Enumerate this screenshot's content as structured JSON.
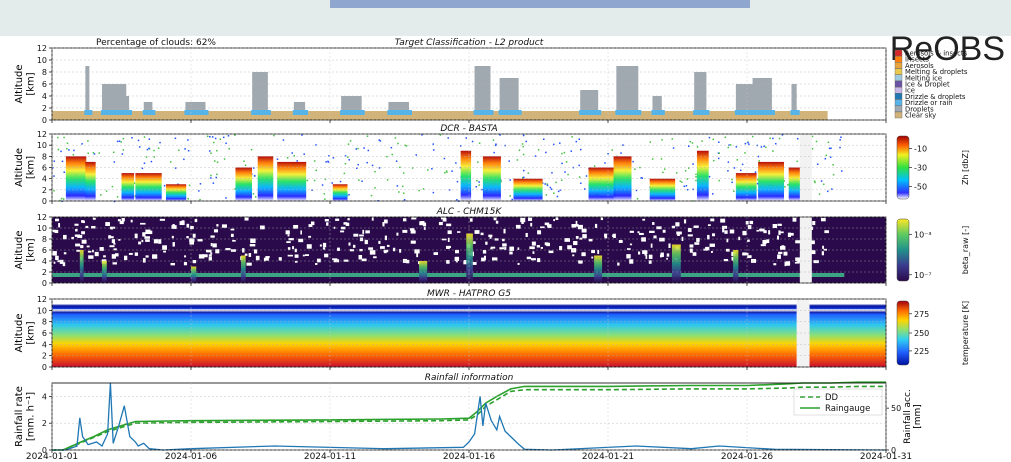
{
  "brand": "ReOBS",
  "x_ticks": [
    "2024-01-01",
    "2024-01-06",
    "2024-01-11",
    "2024-01-16",
    "2024-01-21",
    "2024-01-26",
    "2024-01-31"
  ],
  "x_range_days": [
    0,
    30
  ],
  "colors": {
    "target": [
      "#d62728",
      "#ff7f0e",
      "#e8a33a",
      "#e9c94e",
      "#9ecae1",
      "#6a51a3",
      "#c7b7e6",
      "#1f78b4",
      "#56b4e9",
      "#a1a9b0",
      "#d2b47a",
      "#ffffff"
    ]
  },
  "chart_data": [
    {
      "type": "heatmap",
      "title": "Target Classification - L2 product",
      "annotation": "Percentage of clouds: 62%",
      "ylabel": "Altitude\n[km]",
      "ylim": [
        0,
        12
      ],
      "yticks": [
        "0",
        "2",
        "4",
        "6",
        "8",
        "10",
        "12"
      ],
      "legend_position": "right",
      "legend": [
        "Aerosols & insects",
        "Insects",
        "Aerosols",
        "Melting & droplets",
        "Melting ice",
        "Ice & Droplet",
        "Ice",
        "Drizzle & droplets",
        "Drizzle or rain",
        "Droplets",
        "Clear sky"
      ]
    },
    {
      "type": "heatmap",
      "title": "DCR - BASTA",
      "ylabel": "Altitude\n[km]",
      "ylim": [
        0,
        12
      ],
      "yticks": [
        "0",
        "2",
        "4",
        "6",
        "8",
        "10",
        "12"
      ],
      "colorbar_label": "Zh [dbZ]",
      "colorbar_ticks": [
        "-10",
        "-30",
        "-50"
      ]
    },
    {
      "type": "heatmap",
      "title": "ALC - CHM15K",
      "ylabel": "Altitude\n[km]",
      "ylim": [
        0,
        12
      ],
      "yticks": [
        "0",
        "2",
        "4",
        "6",
        "8",
        "10",
        "12"
      ],
      "colorbar_label": "beta_raw [-]",
      "colorbar_ticks": [
        "10⁻³",
        "10⁻⁷"
      ]
    },
    {
      "type": "heatmap",
      "title": "MWR - HATPRO G5",
      "ylabel": "Altitude\n[km]",
      "ylim": [
        0,
        12
      ],
      "yticks": [
        "0",
        "2",
        "4",
        "6",
        "8",
        "10",
        "12"
      ],
      "colorbar_label": "temperature [K]",
      "colorbar_ticks": [
        "275",
        "250",
        "225"
      ]
    },
    {
      "type": "line",
      "title": "Rainfall information",
      "ylabel": "Rainfall rate\n[mm. h⁻¹]",
      "y2label": "Rainfall acc.\n[mm]",
      "ylim": [
        0,
        5
      ],
      "yticks": [
        "0",
        "2",
        "4"
      ],
      "y2ticks": [
        "0",
        "50"
      ],
      "y2lim": [
        0,
        80
      ],
      "legend_position": "right",
      "series": [
        {
          "name": "DD",
          "style": "dashed",
          "color": "#2ca02c",
          "x": [
            0,
            0.4,
            0.6,
            1.0,
            1.5,
            2.0,
            2.5,
            3.0,
            5,
            10,
            14,
            15.0,
            15.3,
            15.6,
            16.0,
            16.5,
            17,
            20,
            23,
            25,
            26.5,
            27,
            28,
            29,
            30
          ],
          "y": [
            0,
            0,
            3,
            8,
            15,
            22,
            27,
            32,
            33,
            34,
            35,
            36,
            42,
            52,
            60,
            70,
            72,
            72,
            73,
            73,
            74,
            75,
            75,
            76,
            76
          ]
        },
        {
          "name": "Raingauge",
          "style": "solid",
          "color": "#2ca02c",
          "x": [
            0,
            0.4,
            0.6,
            1.0,
            1.5,
            2.0,
            2.5,
            3.0,
            5,
            10,
            14,
            15.0,
            15.3,
            15.6,
            16.0,
            16.5,
            17,
            20,
            23,
            25,
            26.5,
            27,
            28,
            29,
            30
          ],
          "y": [
            0,
            0,
            3,
            9,
            16,
            24,
            29,
            34,
            35,
            36,
            37,
            38,
            46,
            56,
            64,
            73,
            76,
            76,
            77,
            77,
            79,
            80,
            80,
            81,
            81
          ]
        },
        {
          "name": "",
          "style": "solid",
          "color": "#1f77b4",
          "x": [
            0,
            0.5,
            0.9,
            1.0,
            1.1,
            1.3,
            1.6,
            1.8,
            2.0,
            2.1,
            2.2,
            2.4,
            2.6,
            2.8,
            3.0,
            3.1,
            3.3,
            3.5,
            4,
            5,
            8,
            12,
            14.8,
            15.0,
            15.2,
            15.4,
            15.5,
            15.6,
            15.8,
            16.0,
            16.1,
            16.3,
            16.5,
            16.8,
            17,
            18,
            21,
            23,
            24,
            26,
            30
          ],
          "y": [
            0,
            0,
            0.3,
            2.4,
            1.0,
            0.4,
            0.6,
            0.3,
            1.2,
            5.0,
            0.5,
            1.8,
            3.3,
            1.0,
            0.6,
            0.3,
            0.5,
            0.1,
            0,
            0.1,
            0.3,
            0.1,
            0.2,
            0.6,
            1.2,
            4.0,
            1.8,
            3.5,
            2.2,
            1.5,
            2.5,
            1.4,
            1.0,
            0.4,
            0.05,
            0,
            0.3,
            0.1,
            0.3,
            0.05,
            0
          ]
        }
      ]
    }
  ]
}
